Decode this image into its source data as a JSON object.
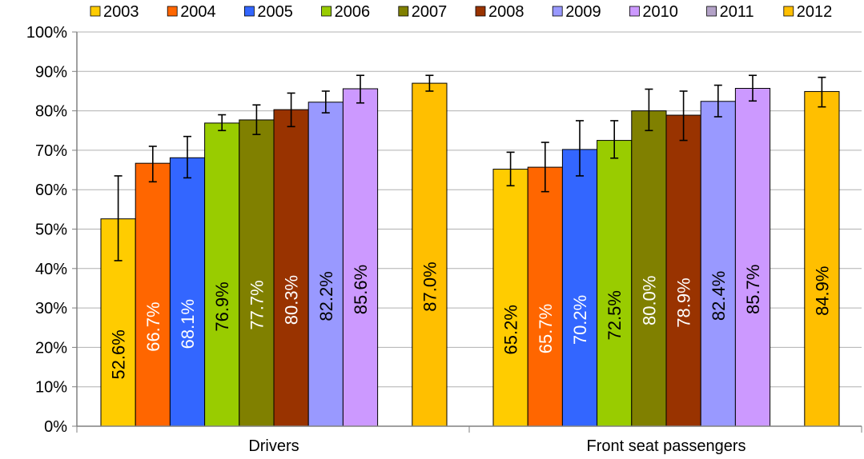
{
  "chart_data": {
    "type": "bar",
    "categories": [
      "Drivers",
      "Front seat passengers"
    ],
    "ylim": [
      0,
      100
    ],
    "y_ticks": [
      "0%",
      "10%",
      "20%",
      "30%",
      "40%",
      "50%",
      "60%",
      "70%",
      "80%",
      "90%",
      "100%"
    ],
    "y_tick_values": [
      0,
      10,
      20,
      30,
      40,
      50,
      60,
      70,
      80,
      90,
      100
    ],
    "grid": "horizontal",
    "legend_position": "top",
    "title": "",
    "xlabel": "",
    "ylabel": "",
    "series": [
      {
        "name": "2003",
        "color": "#ffcc00",
        "label_color": "#000000",
        "values": [
          52.6,
          65.2
        ],
        "labels": [
          "52.6%",
          "65.2%"
        ],
        "err_low": [
          42.0,
          61.0
        ],
        "err_high": [
          63.5,
          69.5
        ]
      },
      {
        "name": "2004",
        "color": "#ff6600",
        "label_color": "#ffffff",
        "values": [
          66.7,
          65.7
        ],
        "labels": [
          "66.7%",
          "65.7%"
        ],
        "err_low": [
          62.0,
          59.5
        ],
        "err_high": [
          71.0,
          72.0
        ]
      },
      {
        "name": "2005",
        "color": "#3366ff",
        "label_color": "#ffffff",
        "values": [
          68.1,
          70.2
        ],
        "labels": [
          "68.1%",
          "70.2%"
        ],
        "err_low": [
          63.0,
          63.5
        ],
        "err_high": [
          73.5,
          77.5
        ]
      },
      {
        "name": "2006",
        "color": "#99cc00",
        "label_color": "#000000",
        "values": [
          76.9,
          72.5
        ],
        "labels": [
          "76.9%",
          "72.5%"
        ],
        "err_low": [
          75.0,
          68.0
        ],
        "err_high": [
          79.0,
          77.5
        ]
      },
      {
        "name": "2007",
        "color": "#808000",
        "label_color": "#ffffff",
        "values": [
          77.7,
          80.0
        ],
        "labels": [
          "77.7%",
          "80.0%"
        ],
        "err_low": [
          74.0,
          75.0
        ],
        "err_high": [
          81.5,
          85.5
        ]
      },
      {
        "name": "2008",
        "color": "#993300",
        "label_color": "#ffffff",
        "values": [
          80.3,
          78.9
        ],
        "labels": [
          "80.3%",
          "78.9%"
        ],
        "err_low": [
          76.0,
          72.5
        ],
        "err_high": [
          84.5,
          85.0
        ]
      },
      {
        "name": "2009",
        "color": "#9999ff",
        "label_color": "#000000",
        "values": [
          82.2,
          82.4
        ],
        "labels": [
          "82.2%",
          "82.4%"
        ],
        "err_low": [
          79.5,
          78.5
        ],
        "err_high": [
          85.0,
          86.5
        ]
      },
      {
        "name": "2010",
        "color": "#cc99ff",
        "label_color": "#000000",
        "values": [
          85.6,
          85.7
        ],
        "labels": [
          "85.6%",
          "85.7%"
        ],
        "err_low": [
          82.0,
          82.5
        ],
        "err_high": [
          89.0,
          89.0
        ]
      },
      {
        "name": "2011",
        "color": "#b3a2c7",
        "label_color": "#000000",
        "values": [
          null,
          null
        ],
        "labels": [
          "",
          ""
        ],
        "err_low": [
          null,
          null
        ],
        "err_high": [
          null,
          null
        ]
      },
      {
        "name": "2012",
        "color": "#ffbf00",
        "label_color": "#000000",
        "values": [
          87.0,
          84.9
        ],
        "labels": [
          "87.0%",
          "84.9%"
        ],
        "err_low": [
          85.0,
          81.0
        ],
        "err_high": [
          89.0,
          88.5
        ]
      }
    ]
  }
}
